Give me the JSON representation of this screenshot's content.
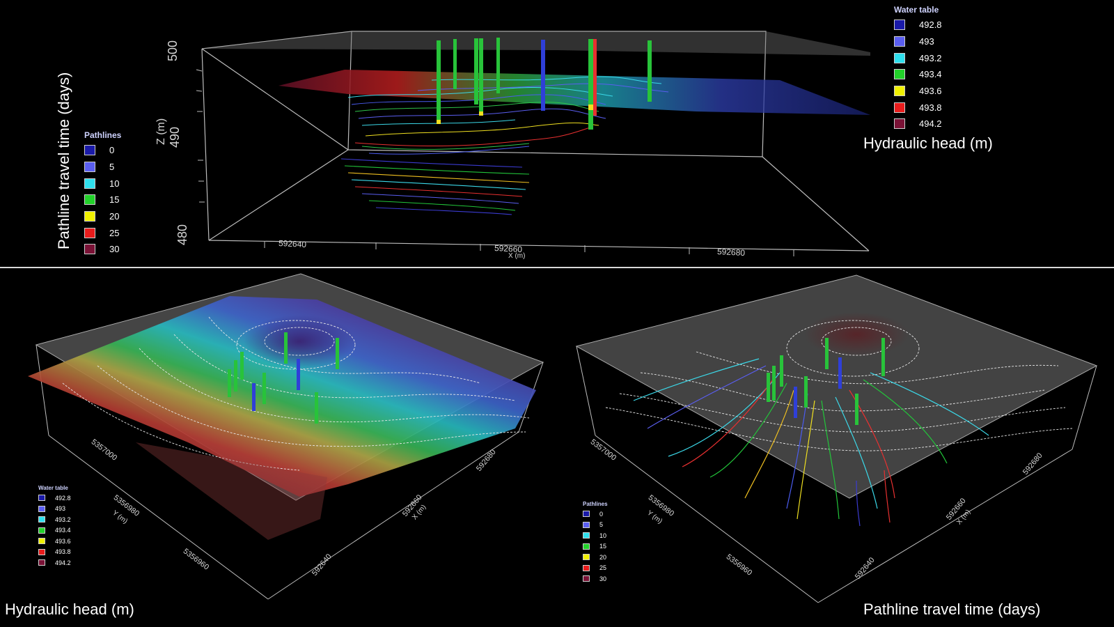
{
  "top": {
    "left_title": "Pathline travel time (days)",
    "right_title": "Hydraulic head (m)",
    "z_label": "Z (m)",
    "z_ticks": [
      "500",
      "490",
      "480"
    ],
    "x_label": "X (m)",
    "x_ticks": [
      "592640",
      "592660",
      "592680"
    ]
  },
  "bottom_left": {
    "caption": "Hydraulic head (m)",
    "y_label": "Y (m)",
    "y_ticks": [
      "5357000",
      "5356980",
      "5356960"
    ],
    "x_label": "X (m)",
    "x_ticks": [
      "592640",
      "592660",
      "592680"
    ]
  },
  "bottom_right": {
    "caption": "Pathline travel time (days)",
    "y_label": "Y (m)",
    "y_ticks": [
      "5357000",
      "5356980",
      "5356960"
    ],
    "x_label": "X (m)",
    "x_ticks": [
      "592640",
      "592660",
      "592680"
    ]
  },
  "legends": {
    "water_table": {
      "title": "Water table",
      "items": [
        {
          "label": "492.8",
          "color": "#1a1aa8"
        },
        {
          "label": "493",
          "color": "#5a5ef0"
        },
        {
          "label": "493.2",
          "color": "#2fe0ee"
        },
        {
          "label": "493.4",
          "color": "#22d12a"
        },
        {
          "label": "493.6",
          "color": "#f0f000"
        },
        {
          "label": "493.8",
          "color": "#e81c1c"
        },
        {
          "label": "494.2",
          "color": "#7a1236"
        }
      ]
    },
    "pathlines": {
      "title": "Pathlines",
      "items": [
        {
          "label": "0",
          "color": "#1a1aa8"
        },
        {
          "label": "5",
          "color": "#5a5ef0"
        },
        {
          "label": "10",
          "color": "#2fe0ee"
        },
        {
          "label": "15",
          "color": "#22d12a"
        },
        {
          "label": "20",
          "color": "#f0f000"
        },
        {
          "label": "25",
          "color": "#e81c1c"
        },
        {
          "label": "30",
          "color": "#7a1236"
        }
      ]
    }
  }
}
